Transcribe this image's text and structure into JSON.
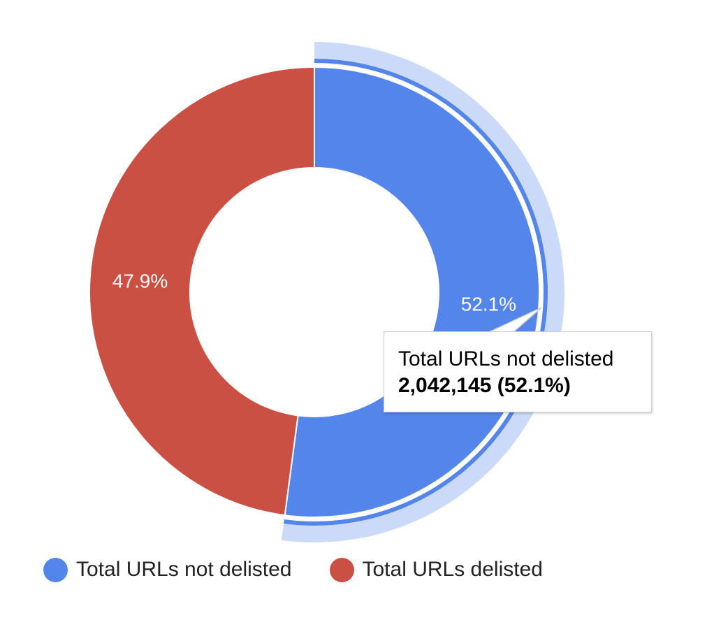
{
  "chart_data": {
    "type": "pie",
    "donut": true,
    "series": [
      {
        "name": "Total URLs not delisted",
        "value": 2042145,
        "percent_label": "52.1%",
        "color": "#5485eb",
        "highlight_color": "#cbdaf8"
      },
      {
        "name": "Total URLs delisted",
        "percent_label": "47.9%",
        "color": "#c95042"
      }
    ],
    "percentages": [
      52.1,
      47.9
    ],
    "highlighted_index": 0,
    "legend_position": "bottom"
  },
  "tooltip": {
    "title": "Total URLs not delisted",
    "value": "2,042,145 (52.1%)"
  },
  "legend": [
    {
      "label": "Total URLs not delisted",
      "color": "#5485eb"
    },
    {
      "label": "Total URLs delisted",
      "color": "#c95042"
    }
  ]
}
